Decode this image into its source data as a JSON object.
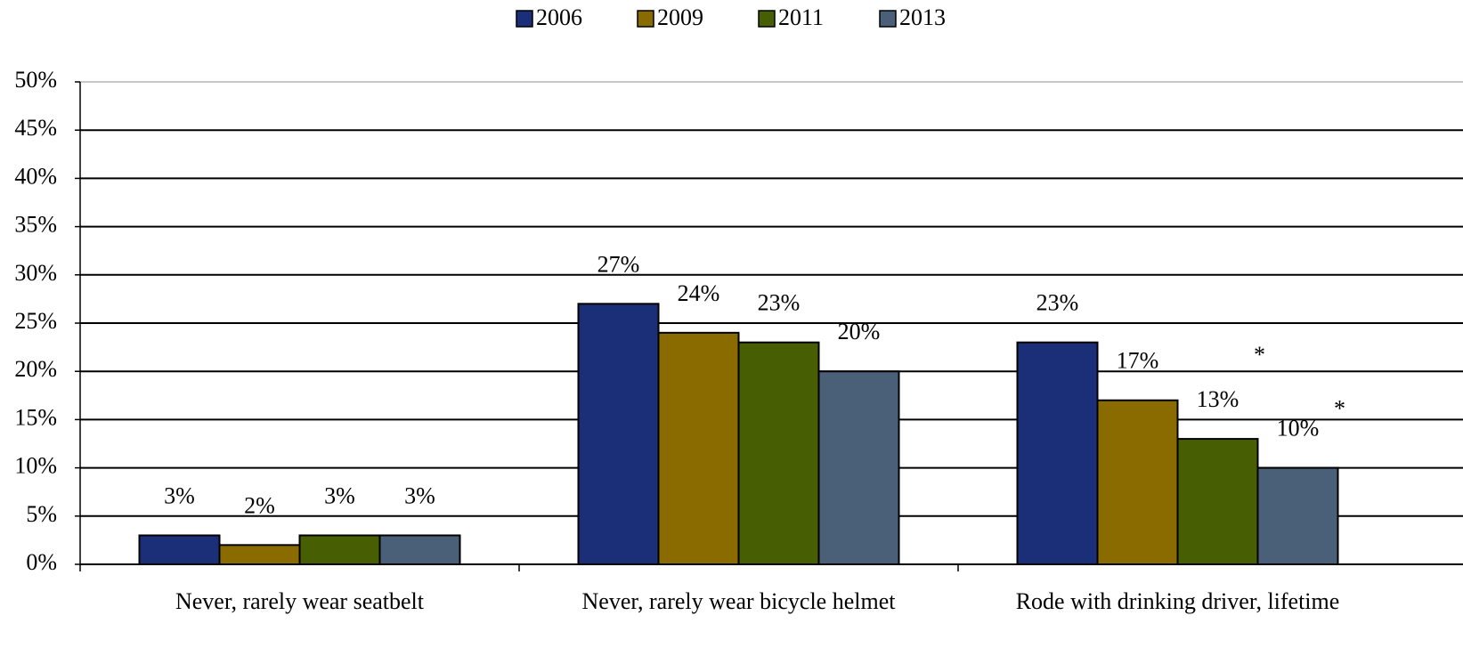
{
  "chart_data": {
    "type": "bar",
    "categories": [
      "Never, rarely wear seatbelt",
      "Never, rarely wear bicycle helmet",
      "Rode with drinking driver, lifetime"
    ],
    "series": [
      {
        "name": "2006",
        "color": "#1b2e78",
        "values": [
          3,
          27,
          23
        ],
        "value_labels": [
          "3%",
          "27%",
          "23%"
        ]
      },
      {
        "name": "2009",
        "color": "#8a6b00",
        "values": [
          2,
          24,
          17
        ],
        "value_labels": [
          "2%",
          "24%",
          "17%"
        ]
      },
      {
        "name": "2011",
        "color": "#475e02",
        "values": [
          3,
          23,
          13
        ],
        "value_labels": [
          "3%",
          "23%",
          "13%"
        ]
      },
      {
        "name": "2013",
        "color": "#4a6079",
        "values": [
          3,
          20,
          10
        ],
        "value_labels": [
          "3%",
          "20%",
          "10%"
        ]
      }
    ],
    "annotations": [
      "*",
      "*"
    ],
    "ylim": [
      0,
      50
    ],
    "yticks": [
      {
        "value": 0,
        "label": "0%"
      },
      {
        "value": 5,
        "label": "5%"
      },
      {
        "value": 10,
        "label": "10%"
      },
      {
        "value": 15,
        "label": "15%"
      },
      {
        "value": 20,
        "label": "20%"
      },
      {
        "value": 25,
        "label": "25%"
      },
      {
        "value": 30,
        "label": "30%"
      },
      {
        "value": 35,
        "label": "35%"
      },
      {
        "value": 40,
        "label": "40%"
      },
      {
        "value": 45,
        "label": "45%"
      },
      {
        "value": 50,
        "label": "50%"
      }
    ],
    "grid": true,
    "legend": "top"
  }
}
